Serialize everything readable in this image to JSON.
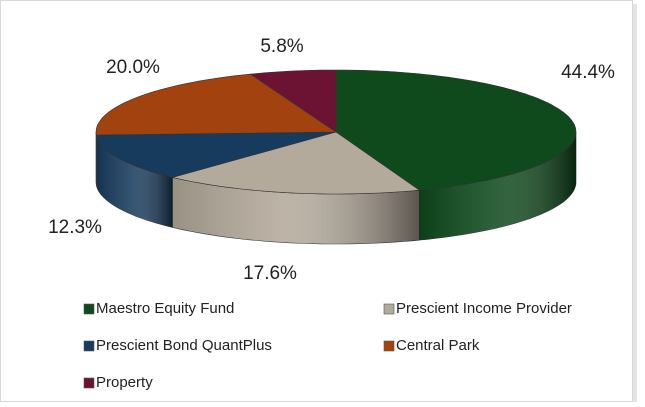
{
  "chart_data": {
    "type": "pie3d",
    "categories": [
      "Maestro Equity Fund",
      "Prescient Income Provider",
      "Prescient Bond QuantPlus",
      "Central Park",
      "Property"
    ],
    "values": [
      44.4,
      17.6,
      12.3,
      20.0,
      5.8
    ],
    "value_labels": [
      "44.4%",
      "17.6%",
      "12.3%",
      "20.0%",
      "5.8%"
    ],
    "colors": [
      "#0e4a1c",
      "#b4aa9b",
      "#173b5c",
      "#a2420f",
      "#6c1232"
    ],
    "legend": "bottom"
  }
}
